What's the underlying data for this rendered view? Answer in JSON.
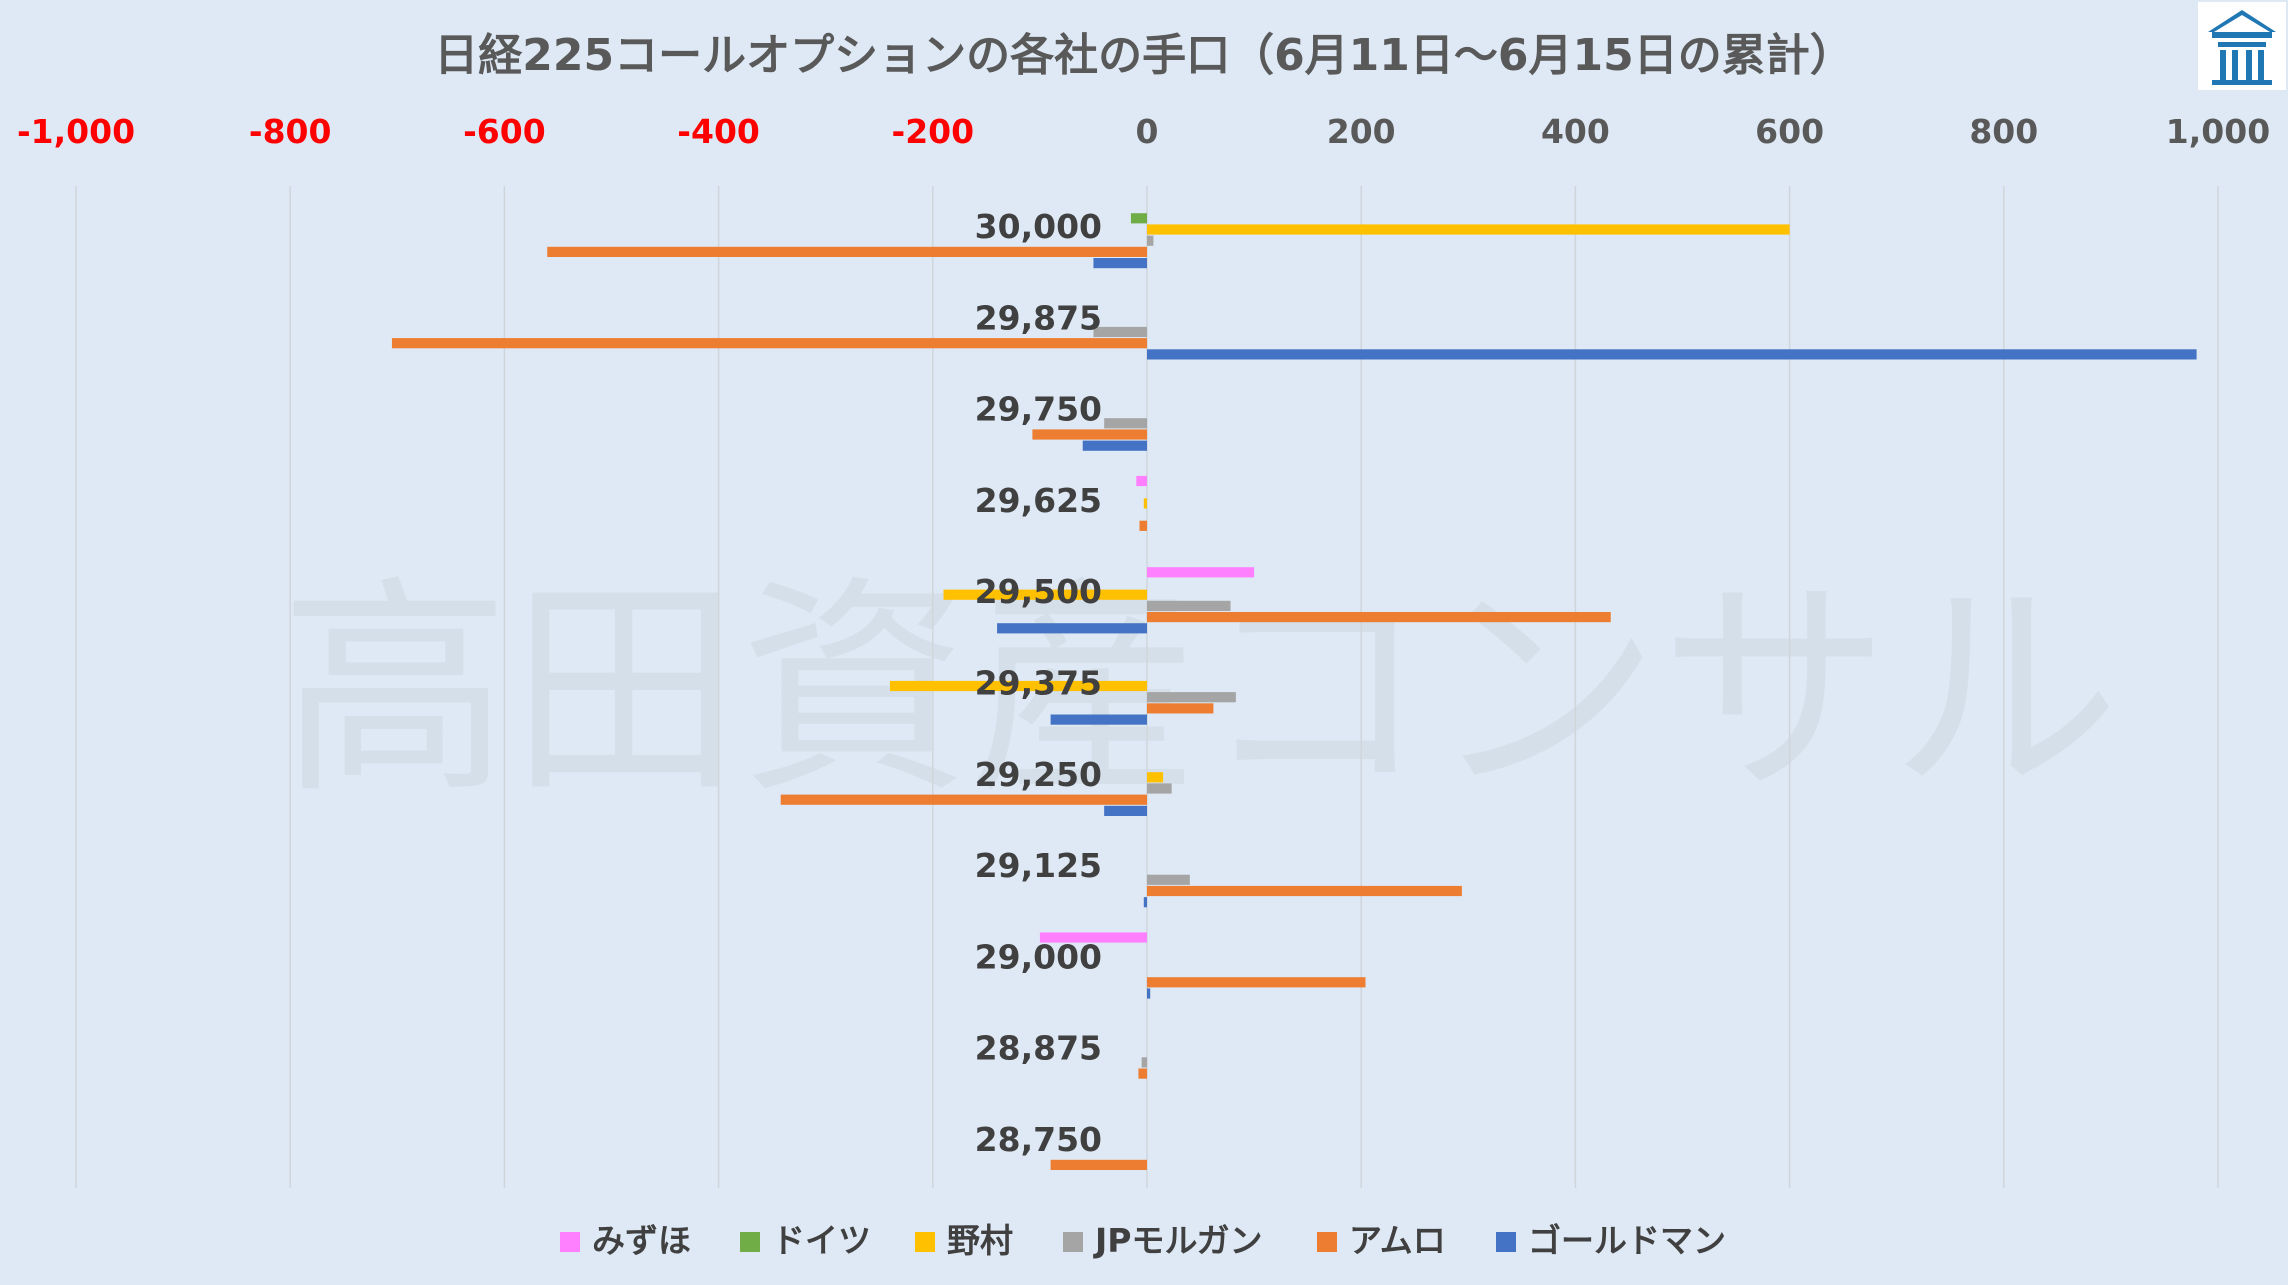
{
  "watermark": "高田資産コンサル",
  "colors": {
    "background": "#dee9f5",
    "gridline": "#d0d5db",
    "negative_tick": "#ff0000",
    "positive_tick": "#595959",
    "logo_blue": "#1f77b4"
  },
  "chart_data": {
    "type": "bar",
    "orientation": "horizontal",
    "title": "日経225コールオプションの各社の手口（6月11日～6月15日の累計）",
    "xlim": [
      -1000,
      1000
    ],
    "x_ticks": [
      "-1,000",
      "-800",
      "-600",
      "-400",
      "-200",
      "0",
      "200",
      "400",
      "600",
      "800",
      "1,000"
    ],
    "x_tick_values": [
      -1000,
      -800,
      -600,
      -400,
      -200,
      0,
      200,
      400,
      600,
      800,
      1000
    ],
    "grid": true,
    "legend_position": "bottom",
    "categories": [
      "30,000",
      "29,875",
      "29,750",
      "29,625",
      "29,500",
      "29,375",
      "29,250",
      "29,125",
      "29,000",
      "28,875",
      "28,750"
    ],
    "series": [
      {
        "name": "みずほ",
        "color": "#ff80ff",
        "values": [
          0,
          0,
          0,
          -10,
          100,
          0,
          0,
          0,
          -100,
          0,
          0
        ]
      },
      {
        "name": "ドイツ",
        "color": "#70ad47",
        "values": [
          -15,
          0,
          0,
          0,
          0,
          0,
          0,
          0,
          0,
          0,
          0
        ]
      },
      {
        "name": "野村",
        "color": "#ffc000",
        "values": [
          600,
          0,
          0,
          -3,
          -190,
          -240,
          15,
          0,
          0,
          0,
          0
        ]
      },
      {
        "name": "JPモルガン",
        "color": "#a5a5a5",
        "values": [
          6,
          -50,
          -40,
          0,
          78,
          83,
          23,
          40,
          0,
          -5,
          0
        ]
      },
      {
        "name": "アムロ",
        "color": "#ed7d31",
        "values": [
          -560,
          -705,
          -107,
          -7,
          433,
          62,
          -342,
          294,
          204,
          -8,
          -90
        ]
      },
      {
        "name": "ゴールドマン",
        "color": "#4472c4",
        "values": [
          -50,
          980,
          -60,
          0,
          -140,
          -90,
          -40,
          -3,
          3,
          0,
          0
        ]
      }
    ]
  }
}
